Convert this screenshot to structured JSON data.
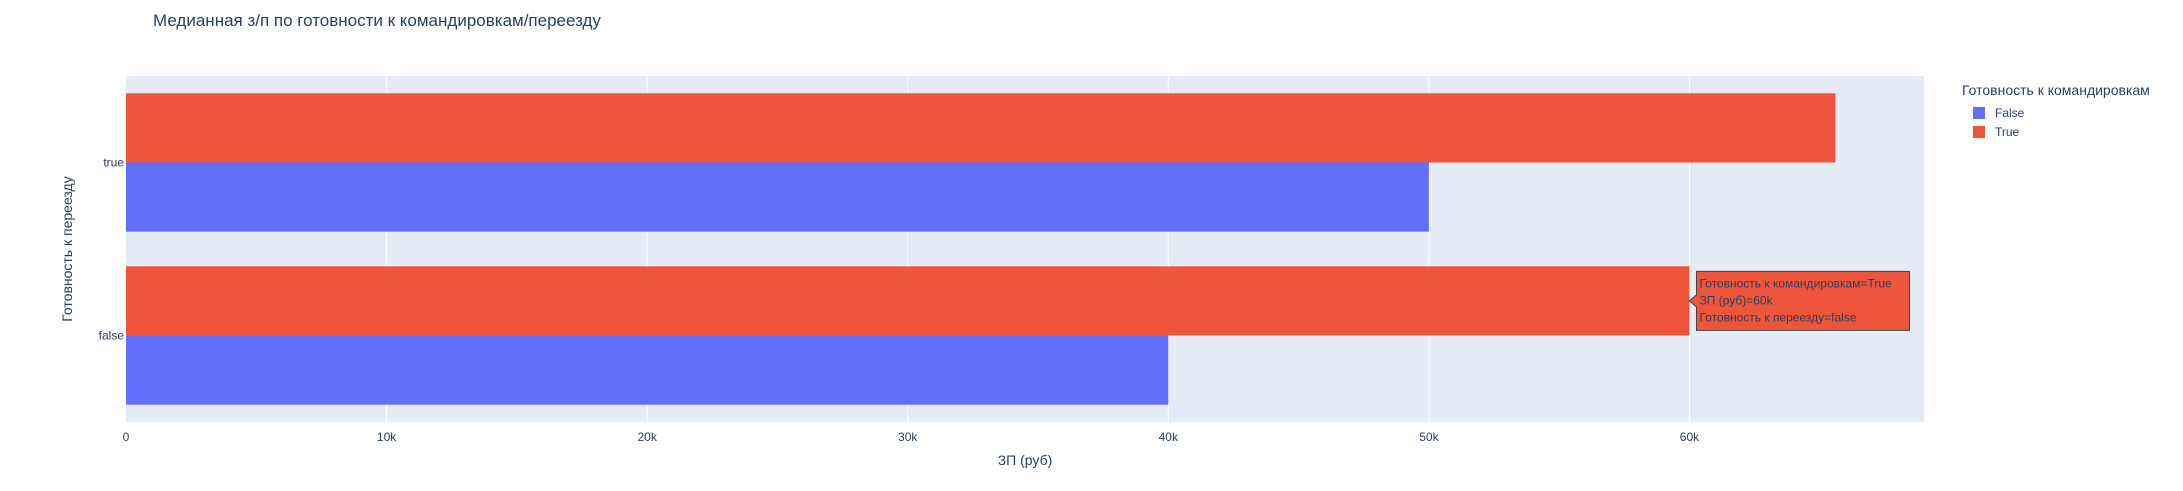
{
  "chart_data": {
    "type": "bar",
    "orientation": "horizontal",
    "barmode": "group",
    "title": "Медианная з/п по готовности к командировкам/переезду",
    "xlabel": "ЗП (руб)",
    "ylabel": "Готовность к переезду",
    "xlim": [
      0,
      69000
    ],
    "x_ticks": [
      {
        "value": 0,
        "label": "0"
      },
      {
        "value": 10000,
        "label": "10k"
      },
      {
        "value": 20000,
        "label": "20k"
      },
      {
        "value": 30000,
        "label": "30k"
      },
      {
        "value": 40000,
        "label": "40k"
      },
      {
        "value": 50000,
        "label": "50k"
      },
      {
        "value": 60000,
        "label": "60k"
      }
    ],
    "categories": [
      "false",
      "true"
    ],
    "series": [
      {
        "name": "False",
        "color": "#636efa",
        "values": [
          40000,
          50000
        ]
      },
      {
        "name": "True",
        "color": "#ef553b",
        "values": [
          60000,
          65600
        ]
      }
    ],
    "legend": {
      "title": "Готовность к командировкам",
      "placement": "right-top"
    },
    "grid": true,
    "tooltip": {
      "series": "True",
      "category": "false",
      "lines": [
        "Готовность к командировкам=True",
        "ЗП (руб)=60k",
        "Готовность к переезду=false"
      ]
    }
  }
}
